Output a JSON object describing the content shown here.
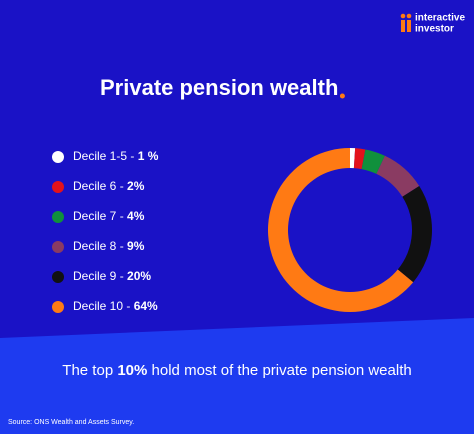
{
  "chart_data": {
    "type": "donut",
    "title": "Private pension wealth",
    "brand": [
      "interactive",
      "investor"
    ],
    "legend_separator": " - ",
    "categories": [
      "Decile 1-5",
      "Decile 6",
      "Decile 7",
      "Decile 8",
      "Decile 9",
      "Decile 10"
    ],
    "values": [
      1,
      2,
      4,
      9,
      20,
      64
    ],
    "value_labels": [
      "1 %",
      "2%",
      "4%",
      "9%",
      "20%",
      "64%"
    ],
    "colors": [
      "#ffffff",
      "#e3121b",
      "#10903c",
      "#8a3b62",
      "#111111",
      "#ff7a14"
    ],
    "caption": [
      "The top ",
      "10%",
      " hold most of the private pension wealth"
    ],
    "source": "Source: ONS Wealth and Assets Survey."
  }
}
